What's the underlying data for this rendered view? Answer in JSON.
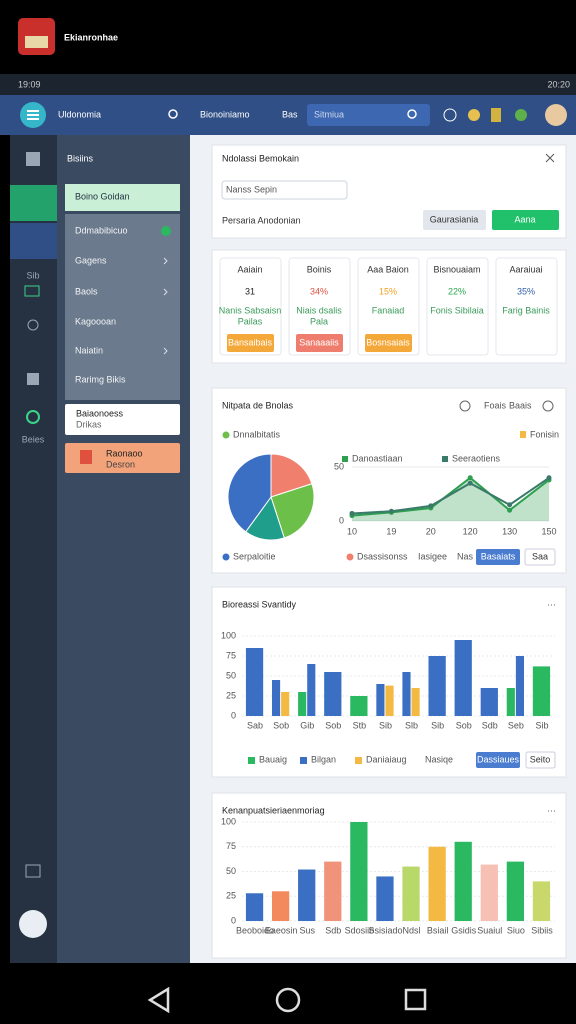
{
  "app": {
    "title": "Ekianronhae"
  },
  "status": {
    "time": "19:09",
    "battery": "20:20"
  },
  "nav": {
    "brand": "Uldonomia",
    "links": [
      "Bionoiniamo",
      "Bas"
    ],
    "search": "Sitmiua"
  },
  "rail": [
    "Sib",
    "Beies"
  ],
  "sidebar": {
    "title": "Bisiins",
    "items": [
      "Boino Goidan",
      "Ddmabibicuo",
      "Gagens",
      "Baols",
      "Kagoooan",
      "Naiatin",
      "Rarimg Bikis"
    ],
    "card1": {
      "title": "Baiaonoess",
      "sub": "Drikas"
    },
    "card2": {
      "title": "Raonaoo",
      "sub": "Desron"
    }
  },
  "form": {
    "title": "Ndolassi Bemokain",
    "input": "Nanss Sepin",
    "label": "Persaria Anodonian",
    "buttons": [
      "Gaurasiania",
      "Aana"
    ]
  },
  "stats": [
    {
      "label": "Aaiain",
      "value": "31",
      "color": "#222222",
      "note": "Nanis Sabsaisn",
      "sub": "Pailas",
      "button": "Bansaibais",
      "button_color": "#f5a83a"
    },
    {
      "label": "Boinis",
      "value": "34%",
      "color": "#e0503e",
      "note": "Niais dsalis",
      "sub": "Pala",
      "button": "Sanaaaiis",
      "button_color": "#ef7d6e"
    },
    {
      "label": "Aaa Baion",
      "value": "15%",
      "color": "#f0a020",
      "note": "Fanaiad",
      "sub": null,
      "button": "Bosnsaiais",
      "button_color": "#f5a83a"
    },
    {
      "label": "Bisnouaiam",
      "value": "22%",
      "color": "#2aa84f",
      "note": "Fonis Sibilaia",
      "sub": null,
      "button": null,
      "button_color": null
    },
    {
      "label": "Aaraiuai",
      "value": "35%",
      "color": "#2f5fa8",
      "note": "Farig Bainis",
      "sub": null,
      "button": null,
      "button_color": null
    }
  ],
  "panel3": {
    "title": "Nitpata de Bnolas",
    "menu": "Foais",
    "menu2": "Baais",
    "tag": "Fonisin",
    "footer": [
      "Iasigee",
      "Nas"
    ],
    "buttons": [
      "Basaiats",
      "Saa"
    ]
  },
  "panel4": {
    "extra": "Nasiqe",
    "buttons": [
      "Dassiaues",
      "Seito"
    ]
  },
  "chart_data": [
    {
      "type": "pie",
      "values": [
        20,
        25,
        15,
        40
      ],
      "labels": [
        "Dsassisonss",
        "Dnnalbitatis",
        null,
        "Serpaloitie"
      ],
      "colors": [
        "#f07f6e",
        "#6cc04a",
        "#1f9e8c",
        "#3a6fc4"
      ]
    },
    {
      "type": "line",
      "categories": [
        "10",
        "19",
        "20",
        "120",
        "130",
        "150"
      ],
      "ylim": [
        0,
        50
      ],
      "yticks": [
        0,
        50
      ],
      "series": [
        {
          "name": "Danoastiaan",
          "color": "#2e9e4f",
          "values": [
            5,
            8,
            12,
            40,
            10,
            38
          ],
          "area": true
        },
        {
          "name": "Seeraotiens",
          "color": "#3a7a6a",
          "values": [
            7,
            9,
            14,
            35,
            15,
            40
          ],
          "area": false
        }
      ]
    },
    {
      "type": "bar",
      "title": "Bioreassi Svantidy",
      "categories": [
        "Sab",
        "Sob",
        "Gib",
        "Sob",
        "Stb",
        "Sib",
        "Slb",
        "Sib",
        "Sob",
        "Sdb",
        "Seb",
        "Sib"
      ],
      "ylim": [
        0,
        100
      ],
      "yticks": [
        0,
        25,
        50,
        75,
        100
      ],
      "series": [
        {
          "name": "Bauaig",
          "color": "#2ab860",
          "values": [
            null,
            null,
            30,
            null,
            25,
            null,
            null,
            null,
            null,
            null,
            35,
            62
          ]
        },
        {
          "name": "Bilgan",
          "color": "#3a6fc4",
          "values": [
            85,
            45,
            65,
            55,
            null,
            40,
            55,
            75,
            95,
            35,
            75,
            null
          ]
        },
        {
          "name": "Daniaiaug",
          "color": "#f4b942",
          "values": [
            null,
            30,
            null,
            null,
            null,
            38,
            35,
            null,
            null,
            null,
            null,
            null
          ]
        }
      ]
    },
    {
      "type": "bar",
      "title": "Kenanpuatsieriaenmoriag",
      "categories": [
        "Beoboido",
        "Eaeosin",
        "Sus",
        "Sdb",
        "Sdosiib",
        "Ssisiado",
        "Ndsl",
        "Bsiail",
        "Gsidis",
        "Suaiul",
        "Siuo",
        "Sibiis"
      ],
      "ylim": [
        0,
        100
      ],
      "yticks": [
        0,
        25,
        50,
        75,
        100
      ],
      "values": [
        28,
        30,
        52,
        60,
        100,
        45,
        55,
        75,
        80,
        57,
        60,
        40
      ],
      "colors": [
        "#3a6fc4",
        "#f28a5e",
        "#3a6fc4",
        "#f0937a",
        "#2ab860",
        "#3a6fc4",
        "#b8d86a",
        "#f4b942",
        "#2ab860",
        "#f6c1b4",
        "#2ab860",
        "#c8d86a"
      ]
    }
  ]
}
